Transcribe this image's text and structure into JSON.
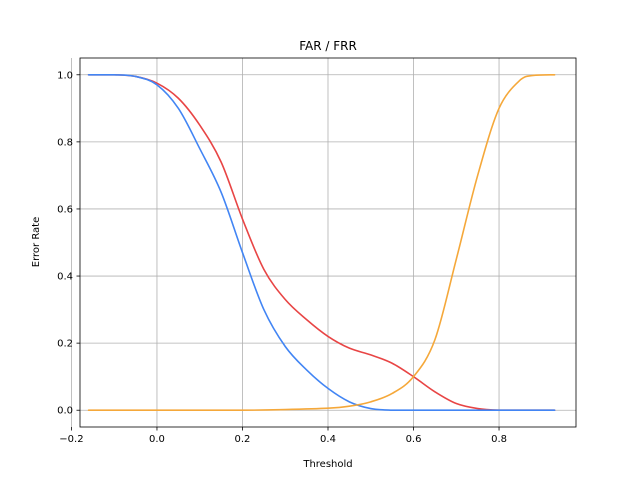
{
  "chart_data": {
    "type": "line",
    "title": "FAR / FRR",
    "xlabel": "Threshold",
    "ylabel": "Error Rate",
    "xlim": [
      -0.18,
      0.98
    ],
    "ylim": [
      -0.05,
      1.05
    ],
    "xticks": [
      -0.2,
      0.0,
      0.2,
      0.4,
      0.6,
      0.8
    ],
    "xtick_labels": [
      "−0.2",
      "0.0",
      "0.2",
      "0.4",
      "0.6",
      "0.8"
    ],
    "yticks": [
      0.0,
      0.2,
      0.4,
      0.6,
      0.8,
      1.0
    ],
    "ytick_labels": [
      "0.0",
      "0.2",
      "0.4",
      "0.6",
      "0.8",
      "1.0"
    ],
    "grid": true,
    "legend": "none",
    "series": [
      {
        "color": "#e84545",
        "x": [
          -0.16,
          -0.1,
          -0.05,
          0.0,
          0.05,
          0.1,
          0.15,
          0.2,
          0.25,
          0.3,
          0.35,
          0.4,
          0.45,
          0.5,
          0.55,
          0.6,
          0.65,
          0.7,
          0.75,
          0.8,
          0.85,
          0.93
        ],
        "y": [
          1.0,
          1.0,
          0.995,
          0.975,
          0.93,
          0.85,
          0.74,
          0.57,
          0.42,
          0.33,
          0.27,
          0.22,
          0.185,
          0.165,
          0.14,
          0.1,
          0.055,
          0.02,
          0.005,
          0.0,
          0.0,
          0.0
        ]
      },
      {
        "color": "#4285f4",
        "x": [
          -0.16,
          -0.1,
          -0.05,
          0.0,
          0.05,
          0.1,
          0.15,
          0.2,
          0.25,
          0.3,
          0.35,
          0.4,
          0.45,
          0.5,
          0.55,
          0.6,
          0.7,
          0.8,
          0.93
        ],
        "y": [
          1.0,
          1.0,
          0.995,
          0.97,
          0.9,
          0.78,
          0.65,
          0.47,
          0.3,
          0.19,
          0.12,
          0.065,
          0.025,
          0.005,
          0.0,
          0.0,
          0.0,
          0.0,
          0.0
        ]
      },
      {
        "color": "#f5a83a",
        "x": [
          -0.16,
          0.0,
          0.2,
          0.3,
          0.4,
          0.45,
          0.5,
          0.55,
          0.6,
          0.65,
          0.7,
          0.75,
          0.8,
          0.85,
          0.88,
          0.93
        ],
        "y": [
          0.0,
          0.0,
          0.0,
          0.002,
          0.006,
          0.012,
          0.025,
          0.05,
          0.1,
          0.21,
          0.45,
          0.7,
          0.9,
          0.985,
          0.998,
          1.0
        ]
      }
    ]
  }
}
